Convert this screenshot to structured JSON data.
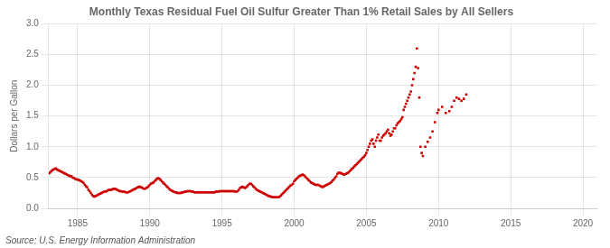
{
  "chart_data": {
    "type": "scatter",
    "title": "Monthly Texas Residual Fuel Oil Sulfur Greater Than 1% Retail Sales by All Sellers",
    "ylabel": "Dollars per Gallon",
    "annotations": [
      "Source: U.S. Energy Information Administration"
    ],
    "color": "#CC0000",
    "marker": "square",
    "grid": true,
    "xlim": [
      1983,
      2021
    ],
    "ylim": [
      0.0,
      3.0
    ],
    "xticks": [
      1985,
      1990,
      1995,
      2000,
      2005,
      2010,
      2015,
      2020
    ],
    "yticks": [
      {
        "value": 0.0,
        "label": "0.0"
      },
      0.5,
      {
        "value": 1.0,
        "label": "1.0"
      },
      1.5,
      {
        "value": 2.0,
        "label": "2.0"
      },
      2.5,
      {
        "value": 3.0,
        "label": "3.0"
      }
    ],
    "x": [
      1983.0,
      1983.083,
      1983.167,
      1983.25,
      1983.333,
      1983.417,
      1983.5,
      1983.583,
      1983.667,
      1983.75,
      1983.833,
      1983.917,
      1984.0,
      1984.083,
      1984.167,
      1984.25,
      1984.333,
      1984.417,
      1984.5,
      1984.583,
      1984.667,
      1984.75,
      1984.833,
      1984.917,
      1985.0,
      1985.083,
      1985.167,
      1985.25,
      1985.333,
      1985.417,
      1985.5,
      1985.583,
      1985.667,
      1985.75,
      1985.833,
      1985.917,
      1986.0,
      1986.083,
      1986.167,
      1986.25,
      1986.333,
      1986.417,
      1986.5,
      1986.583,
      1986.667,
      1986.75,
      1986.833,
      1986.917,
      1987.0,
      1987.083,
      1987.167,
      1987.25,
      1987.333,
      1987.417,
      1987.5,
      1987.583,
      1987.667,
      1987.75,
      1987.833,
      1987.917,
      1988.0,
      1988.083,
      1988.167,
      1988.25,
      1988.333,
      1988.417,
      1988.5,
      1988.583,
      1988.667,
      1988.75,
      1988.833,
      1988.917,
      1989.0,
      1989.083,
      1989.167,
      1989.25,
      1989.333,
      1989.417,
      1989.5,
      1989.583,
      1989.667,
      1989.75,
      1989.833,
      1989.917,
      1990.0,
      1990.083,
      1990.167,
      1990.25,
      1990.333,
      1990.417,
      1990.5,
      1990.583,
      1990.667,
      1990.75,
      1990.833,
      1990.917,
      1991.0,
      1991.083,
      1991.167,
      1991.25,
      1991.333,
      1991.417,
      1991.5,
      1991.583,
      1991.667,
      1991.75,
      1991.833,
      1991.917,
      1992.0,
      1992.083,
      1992.167,
      1992.25,
      1992.333,
      1992.417,
      1992.5,
      1992.583,
      1992.667,
      1992.75,
      1992.833,
      1992.917,
      1993.0,
      1993.083,
      1993.167,
      1993.25,
      1993.333,
      1993.417,
      1993.5,
      1993.583,
      1993.667,
      1993.75,
      1993.833,
      1993.917,
      1994.0,
      1994.083,
      1994.167,
      1994.25,
      1994.333,
      1994.417,
      1994.5,
      1994.583,
      1994.667,
      1994.75,
      1994.833,
      1994.917,
      1995.0,
      1995.083,
      1995.167,
      1995.25,
      1995.333,
      1995.417,
      1995.5,
      1995.583,
      1995.667,
      1995.75,
      1995.833,
      1995.917,
      1996.0,
      1996.083,
      1996.167,
      1996.25,
      1996.333,
      1996.417,
      1996.5,
      1996.583,
      1996.667,
      1996.75,
      1996.833,
      1996.917,
      1997.0,
      1997.083,
      1997.167,
      1997.25,
      1997.333,
      1997.417,
      1997.5,
      1997.583,
      1997.667,
      1997.75,
      1997.833,
      1997.917,
      1998.0,
      1998.083,
      1998.167,
      1998.25,
      1998.333,
      1998.417,
      1998.5,
      1998.583,
      1998.667,
      1998.75,
      1998.833,
      1998.917,
      1999.0,
      1999.083,
      1999.167,
      1999.25,
      1999.333,
      1999.417,
      1999.5,
      1999.583,
      1999.667,
      1999.75,
      1999.833,
      1999.917,
      2000.0,
      2000.083,
      2000.167,
      2000.25,
      2000.333,
      2000.417,
      2000.5,
      2000.583,
      2000.667,
      2000.75,
      2000.833,
      2000.917,
      2001.0,
      2001.083,
      2001.167,
      2001.25,
      2001.333,
      2001.417,
      2001.5,
      2001.583,
      2001.667,
      2001.75,
      2001.833,
      2001.917,
      2002.0,
      2002.083,
      2002.167,
      2002.25,
      2002.333,
      2002.417,
      2002.5,
      2002.583,
      2002.667,
      2002.75,
      2002.833,
      2002.917,
      2003.0,
      2003.083,
      2003.167,
      2003.25,
      2003.333,
      2003.417,
      2003.5,
      2003.583,
      2003.667,
      2003.75,
      2003.833,
      2003.917,
      2004.0,
      2004.083,
      2004.167,
      2004.25,
      2004.333,
      2004.417,
      2004.5,
      2004.583,
      2004.667,
      2004.75,
      2004.833,
      2004.917,
      2005.0,
      2005.083,
      2005.167,
      2005.25,
      2005.333,
      2005.417,
      2005.5,
      2005.583,
      2005.667,
      2005.75,
      2005.833,
      2005.917,
      2006.0,
      2006.083,
      2006.167,
      2006.25,
      2006.333,
      2006.417,
      2006.5,
      2006.583,
      2006.667,
      2006.75,
      2006.833,
      2006.917,
      2007.0,
      2007.083,
      2007.167,
      2007.25,
      2007.333,
      2007.417,
      2007.5,
      2007.583,
      2007.667,
      2007.75,
      2007.833,
      2007.917,
      2008.0,
      2008.083,
      2008.167,
      2008.25,
      2008.333,
      2008.417,
      2008.5,
      2008.583,
      2008.667,
      2008.75,
      2008.833,
      2008.917,
      2009.083,
      2009.25,
      2009.417,
      2009.583,
      2009.75,
      2009.917,
      2010.0,
      2010.25,
      2010.5,
      2010.75,
      2010.917,
      2011.083,
      2011.25,
      2011.417,
      2011.583,
      2011.75,
      2011.917
    ],
    "values": [
      0.57,
      0.58,
      0.6,
      0.62,
      0.63,
      0.64,
      0.65,
      0.63,
      0.62,
      0.61,
      0.6,
      0.59,
      0.58,
      0.57,
      0.56,
      0.55,
      0.54,
      0.53,
      0.52,
      0.52,
      0.5,
      0.49,
      0.48,
      0.47,
      0.47,
      0.46,
      0.45,
      0.44,
      0.43,
      0.41,
      0.38,
      0.36,
      0.34,
      0.3,
      0.28,
      0.25,
      0.22,
      0.2,
      0.19,
      0.2,
      0.21,
      0.22,
      0.23,
      0.24,
      0.25,
      0.26,
      0.27,
      0.27,
      0.28,
      0.29,
      0.3,
      0.3,
      0.3,
      0.31,
      0.32,
      0.32,
      0.31,
      0.3,
      0.29,
      0.28,
      0.28,
      0.27,
      0.27,
      0.27,
      0.26,
      0.26,
      0.26,
      0.27,
      0.28,
      0.29,
      0.3,
      0.31,
      0.32,
      0.33,
      0.34,
      0.35,
      0.35,
      0.34,
      0.33,
      0.32,
      0.32,
      0.33,
      0.34,
      0.36,
      0.38,
      0.4,
      0.41,
      0.42,
      0.44,
      0.46,
      0.48,
      0.49,
      0.48,
      0.46,
      0.44,
      0.42,
      0.4,
      0.38,
      0.36,
      0.34,
      0.32,
      0.3,
      0.29,
      0.28,
      0.27,
      0.26,
      0.26,
      0.25,
      0.25,
      0.25,
      0.25,
      0.26,
      0.26,
      0.27,
      0.27,
      0.28,
      0.28,
      0.28,
      0.28,
      0.27,
      0.27,
      0.26,
      0.26,
      0.26,
      0.26,
      0.26,
      0.26,
      0.26,
      0.26,
      0.26,
      0.26,
      0.26,
      0.26,
      0.26,
      0.26,
      0.26,
      0.26,
      0.26,
      0.26,
      0.27,
      0.27,
      0.27,
      0.28,
      0.28,
      0.28,
      0.28,
      0.28,
      0.28,
      0.28,
      0.28,
      0.28,
      0.28,
      0.28,
      0.28,
      0.28,
      0.27,
      0.27,
      0.28,
      0.3,
      0.33,
      0.34,
      0.35,
      0.34,
      0.33,
      0.34,
      0.36,
      0.38,
      0.4,
      0.4,
      0.38,
      0.36,
      0.34,
      0.32,
      0.3,
      0.29,
      0.28,
      0.27,
      0.26,
      0.25,
      0.24,
      0.23,
      0.22,
      0.21,
      0.2,
      0.19,
      0.19,
      0.18,
      0.18,
      0.18,
      0.18,
      0.18,
      0.18,
      0.19,
      0.21,
      0.23,
      0.25,
      0.27,
      0.29,
      0.31,
      0.33,
      0.35,
      0.37,
      0.38,
      0.4,
      0.44,
      0.46,
      0.48,
      0.5,
      0.52,
      0.53,
      0.54,
      0.55,
      0.54,
      0.52,
      0.5,
      0.48,
      0.46,
      0.44,
      0.42,
      0.41,
      0.4,
      0.39,
      0.38,
      0.38,
      0.38,
      0.37,
      0.36,
      0.35,
      0.35,
      0.36,
      0.37,
      0.38,
      0.39,
      0.4,
      0.41,
      0.43,
      0.45,
      0.47,
      0.5,
      0.52,
      0.56,
      0.58,
      0.58,
      0.57,
      0.56,
      0.55,
      0.55,
      0.56,
      0.57,
      0.58,
      0.6,
      0.62,
      0.64,
      0.66,
      0.68,
      0.7,
      0.72,
      0.74,
      0.76,
      0.78,
      0.8,
      0.82,
      0.84,
      0.86,
      0.9,
      0.95,
      1.0,
      1.05,
      1.1,
      1.12,
      1.05,
      1.0,
      1.1,
      1.15,
      1.2,
      1.1,
      1.1,
      1.15,
      1.18,
      1.2,
      1.22,
      1.25,
      1.28,
      1.22,
      1.18,
      1.2,
      1.25,
      1.3,
      1.3,
      1.35,
      1.38,
      1.4,
      1.42,
      1.45,
      1.48,
      1.6,
      1.65,
      1.7,
      1.75,
      1.8,
      1.85,
      1.9,
      2.0,
      2.1,
      2.2,
      2.3,
      2.6,
      2.28,
      1.8,
      1.0,
      0.9,
      0.85,
      1.0,
      1.08,
      1.15,
      1.25,
      1.4,
      1.55,
      1.6,
      1.65,
      1.55,
      1.58,
      1.65,
      1.75,
      1.8,
      1.78,
      1.75,
      1.78,
      1.85
    ]
  }
}
